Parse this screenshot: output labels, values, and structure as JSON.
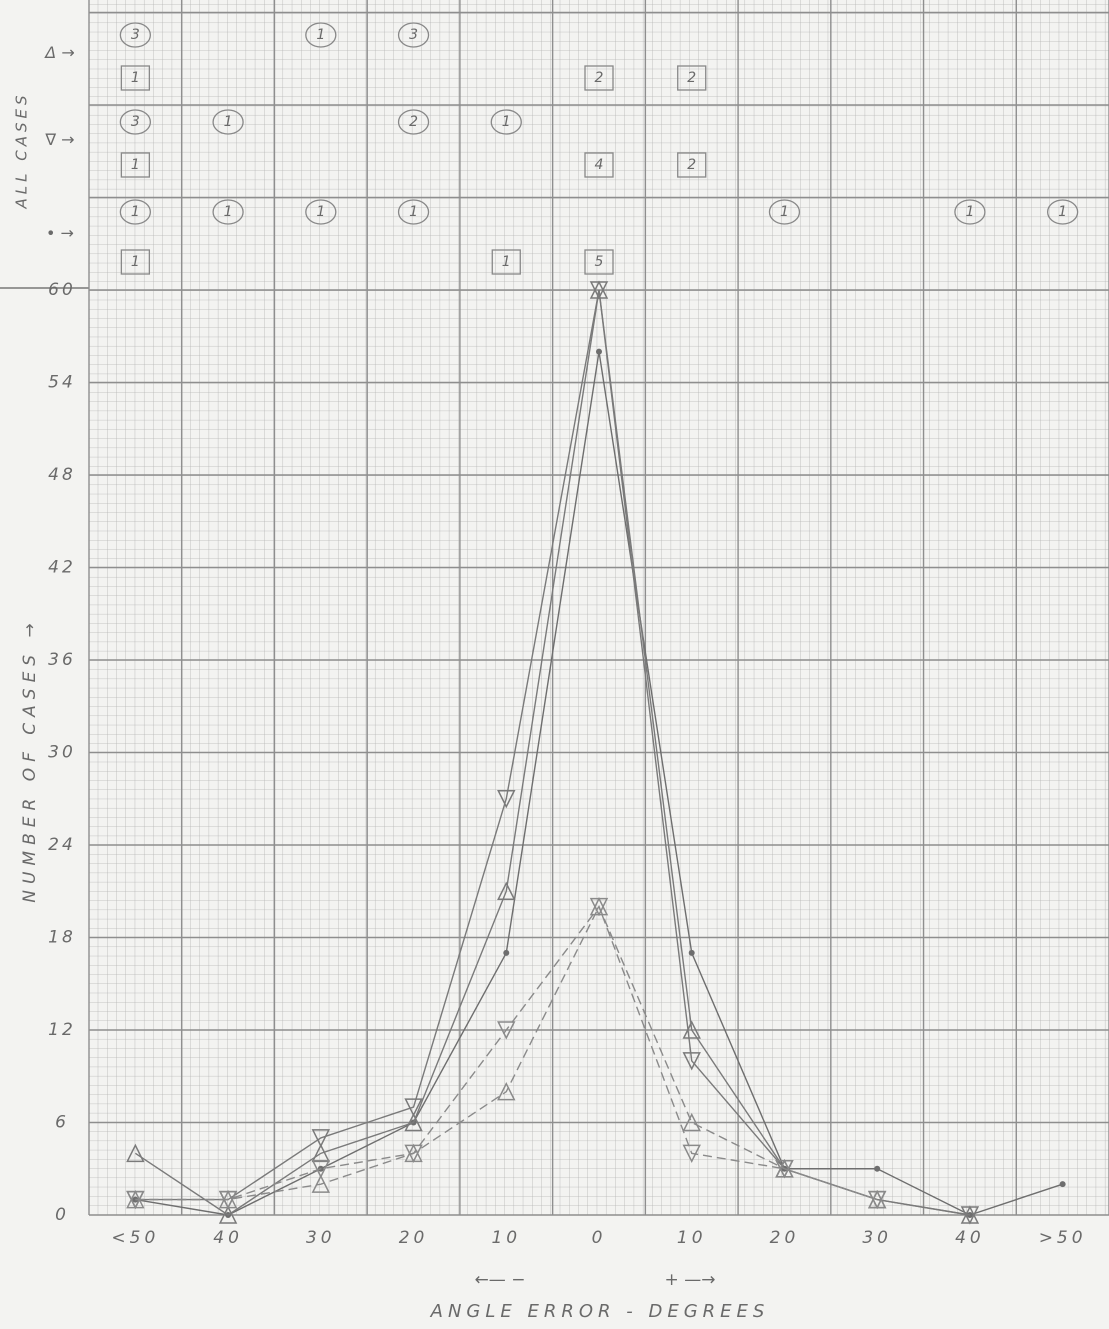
{
  "chart_data": {
    "type": "line",
    "y_label": "NUMBER OF CASES →",
    "x_label": "ANGLE ERROR - DEGREES",
    "x_direction_labels": [
      "←— −",
      "+ —→"
    ],
    "categories": [
      "<50",
      "40",
      "30",
      "20",
      "10",
      "0",
      "10",
      "20",
      "30",
      "40",
      ">50"
    ],
    "ylim": [
      0,
      60
    ],
    "yticks": [
      0,
      6,
      12,
      18,
      24,
      30,
      36,
      42,
      48,
      54,
      60
    ],
    "grid": true,
    "series": [
      {
        "marker": "dot",
        "dashed": false,
        "color": "#6e6e6e",
        "values": [
          1,
          0,
          3,
          6,
          17,
          56,
          17,
          3,
          3,
          0,
          2
        ]
      },
      {
        "marker": "triangle-down",
        "dashed": false,
        "color": "#7a7a7a",
        "values": [
          1,
          1,
          5,
          7,
          27,
          60,
          10,
          3,
          1,
          0,
          null
        ]
      },
      {
        "marker": "triangle-up",
        "dashed": false,
        "color": "#7a7a7a",
        "values": [
          4,
          0,
          4,
          6,
          21,
          60,
          12,
          3,
          1,
          0,
          null
        ]
      },
      {
        "marker": "triangle-up",
        "dashed": true,
        "color": "#8a8a8a",
        "values": [
          1,
          1,
          2,
          4,
          8,
          20,
          6,
          3,
          1,
          null,
          null
        ]
      },
      {
        "marker": "triangle-down",
        "dashed": true,
        "color": "#8a8a8a",
        "values": [
          1,
          1,
          3,
          4,
          12,
          20,
          4,
          3,
          1,
          null,
          null
        ]
      }
    ],
    "counts_header": "ALL CASES",
    "counts": [
      {
        "label": "Δ →",
        "circled": [
          3,
          null,
          1,
          3,
          null,
          null,
          null,
          null,
          null,
          null,
          null
        ],
        "boxed": [
          1,
          null,
          null,
          null,
          null,
          2,
          2,
          null,
          null,
          null,
          null
        ]
      },
      {
        "label": "∇ →",
        "circled": [
          3,
          1,
          null,
          2,
          1,
          null,
          null,
          null,
          null,
          null,
          null
        ],
        "boxed": [
          1,
          null,
          null,
          null,
          null,
          4,
          2,
          null,
          null,
          null,
          null
        ]
      },
      {
        "label": "• →",
        "circled": [
          1,
          1,
          1,
          1,
          null,
          null,
          null,
          1,
          null,
          1,
          1
        ],
        "boxed": [
          1,
          null,
          null,
          null,
          1,
          5,
          null,
          null,
          null,
          null,
          null
        ]
      }
    ]
  }
}
